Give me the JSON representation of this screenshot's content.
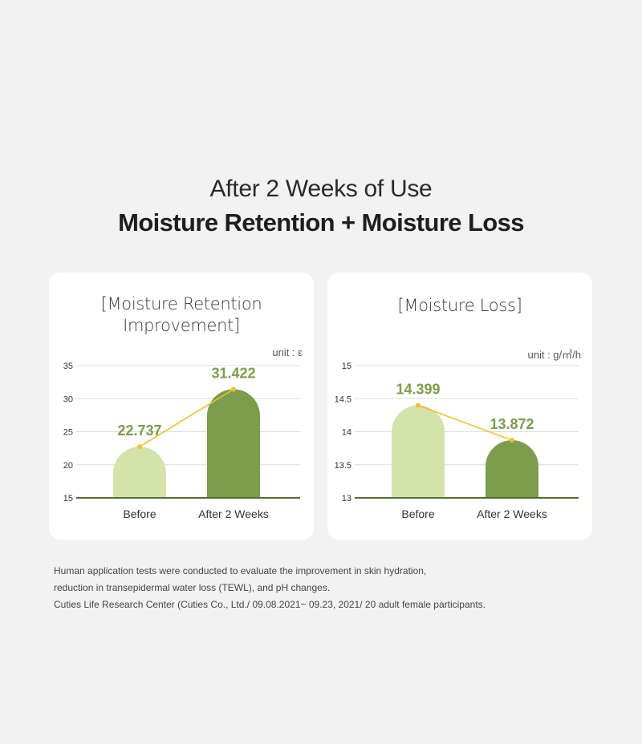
{
  "header": {
    "subtitle": "After 2 Weeks of Use",
    "title": "Moisture Retention + Moisture Loss"
  },
  "colors": {
    "before": "#d4e3a9",
    "after": "#7b9d4c",
    "line": "#f2c12e",
    "label": "#7b9d4c",
    "baseline": "#4e6e33",
    "grid": "#dcdcdc"
  },
  "chart_data": [
    {
      "type": "bar",
      "title": "[Moisture Retention Improvement]",
      "title_lines": [
        "[Moisture Retention",
        "Improvement]"
      ],
      "unit": "unit : ε",
      "categories": [
        "Before",
        "After 2 Weeks"
      ],
      "values": [
        22.737,
        31.422
      ],
      "value_labels": [
        "22.737",
        "31.422"
      ],
      "yticks": [
        "35",
        "30",
        "25",
        "20",
        "15"
      ],
      "ylim": [
        15,
        35
      ],
      "grid": true,
      "connector_line": true
    },
    {
      "type": "bar",
      "title": "[Moisture Loss]",
      "title_lines": [
        "[Moisture Loss]"
      ],
      "unit": "unit : g/㎡/h",
      "categories": [
        "Before",
        "After 2 Weeks"
      ],
      "values": [
        14.399,
        13.872
      ],
      "value_labels": [
        "14.399",
        "13.872"
      ],
      "yticks": [
        "15",
        "14.5",
        "14",
        "13.5",
        "13"
      ],
      "ylim": [
        13,
        15
      ],
      "grid": true,
      "connector_line": true
    }
  ],
  "footnote": [
    "Human application tests were conducted to evaluate the improvement in skin hydration,",
    "reduction in transepidermal water loss (TEWL), and pH changes.",
    "Cuties Life Research Center (Cuties Co., Ltd./ 09.08.2021~ 09.23, 2021/ 20 adult female participants."
  ]
}
